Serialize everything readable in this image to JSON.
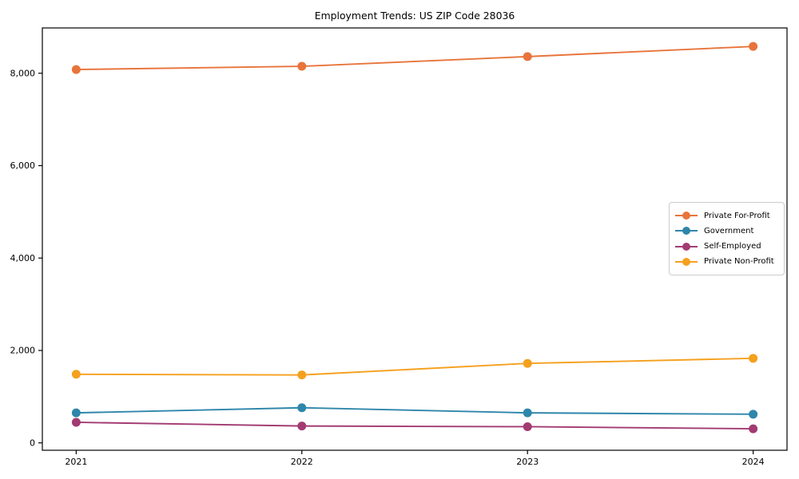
{
  "chart_data": {
    "type": "line",
    "title": "Employment Trends: US ZIP Code 28036",
    "x": [
      2021,
      2022,
      2023,
      2024
    ],
    "series": [
      {
        "name": "Private For-Profit",
        "color": "#E8743B",
        "values": [
          8080,
          8150,
          8360,
          8580
        ]
      },
      {
        "name": "Government",
        "color": "#2E86AB",
        "values": [
          650,
          760,
          650,
          620
        ]
      },
      {
        "name": "Self-Employed",
        "color": "#A23B72",
        "values": [
          445,
          365,
          350,
          305
        ]
      },
      {
        "name": "Private Non-Profit",
        "color": "#F5A01E",
        "values": [
          1485,
          1470,
          1720,
          1830
        ]
      }
    ],
    "xtick_labels": [
      "2021",
      "2022",
      "2023",
      "2024"
    ],
    "ytick_values": [
      0,
      2000,
      4000,
      6000,
      8000
    ],
    "ytick_labels": [
      "0",
      "2,000",
      "4,000",
      "6,000",
      "8,000"
    ],
    "xlim": [
      2020.85,
      2024.15
    ],
    "ylim": [
      -160,
      8980
    ],
    "grid": false,
    "legend_position": "center-right",
    "marker": "circle",
    "axis_color": "#000000",
    "text_color": "#000000",
    "legend_border_color": "#cccccc",
    "background": "#ffffff"
  }
}
